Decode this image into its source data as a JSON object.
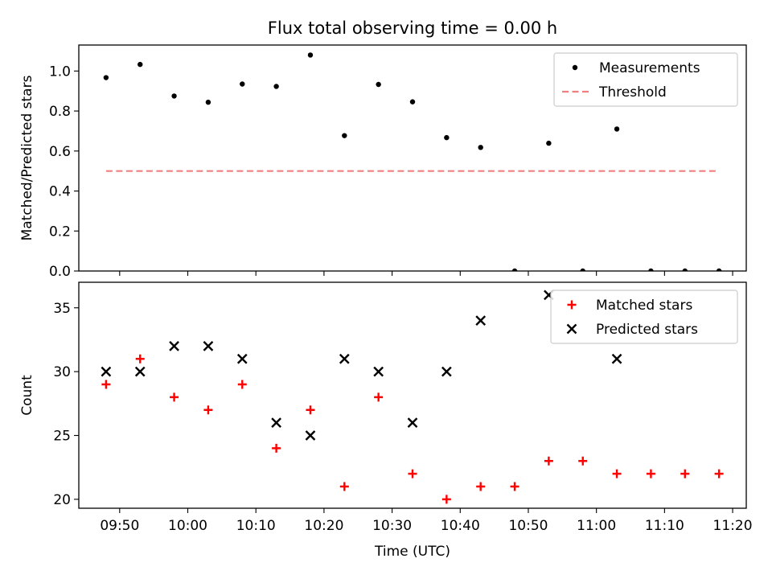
{
  "figure": {
    "title": "Flux total observing time = 0.00 h"
  },
  "chart_data": [
    {
      "type": "scatter",
      "title": "Flux total observing time = 0.00 h",
      "xlabel": "",
      "ylabel": "Matched/Predicted stars",
      "xlim": [
        "09:44",
        "11:22"
      ],
      "ylim": [
        0,
        1.13
      ],
      "yticks": [
        0.0,
        0.2,
        0.4,
        0.6,
        0.8,
        1.0
      ],
      "ytick_labels": [
        "0.0",
        "0.2",
        "0.4",
        "0.6",
        "0.8",
        "1.0"
      ],
      "grid": false,
      "legend": "top-right",
      "series": [
        {
          "name": "Measurements",
          "kind": "scatter",
          "marker": "dot",
          "color": "#000000",
          "x": [
            "09:48",
            "09:53",
            "09:58",
            "10:03",
            "10:08",
            "10:13",
            "10:18",
            "10:23",
            "10:28",
            "10:33",
            "10:38",
            "10:43",
            "10:48",
            "10:53",
            "10:58",
            "11:03",
            "11:08",
            "11:13",
            "11:18"
          ],
          "y": [
            0.967,
            1.033,
            0.875,
            0.844,
            0.935,
            0.923,
            1.08,
            0.677,
            0.933,
            0.846,
            0.667,
            0.618,
            0.0,
            0.639,
            0.0,
            0.71,
            0.0,
            0.0,
            0.0
          ]
        },
        {
          "name": "Threshold",
          "kind": "line",
          "style": "dashed",
          "color": "#f08080",
          "x": [
            "09:48",
            "11:18"
          ],
          "y": [
            0.5,
            0.5
          ]
        }
      ]
    },
    {
      "type": "scatter",
      "title": "",
      "xlabel": "Time (UTC)",
      "ylabel": "Count",
      "xlim": [
        "09:44",
        "11:22"
      ],
      "ylim": [
        19.3,
        37.0
      ],
      "yticks": [
        20,
        25,
        30,
        35
      ],
      "ytick_labels": [
        "20",
        "25",
        "30",
        "35"
      ],
      "xticks": [
        "09:50",
        "10:00",
        "10:10",
        "10:20",
        "10:30",
        "10:40",
        "10:50",
        "11:00",
        "11:10",
        "11:20"
      ],
      "grid": false,
      "legend": "top-right",
      "series": [
        {
          "name": "Matched stars",
          "kind": "scatter",
          "marker": "plus",
          "color": "#ff0000",
          "x": [
            "09:48",
            "09:53",
            "09:58",
            "10:03",
            "10:08",
            "10:13",
            "10:18",
            "10:23",
            "10:28",
            "10:33",
            "10:38",
            "10:43",
            "10:48",
            "10:53",
            "10:58",
            "11:03",
            "11:08",
            "11:13",
            "11:18"
          ],
          "y": [
            29,
            31,
            28,
            27,
            29,
            24,
            27,
            21,
            28,
            22,
            20,
            21,
            21,
            23,
            23,
            22,
            22,
            22,
            22
          ]
        },
        {
          "name": "Predicted stars",
          "kind": "scatter",
          "marker": "x",
          "color": "#000000",
          "x": [
            "09:48",
            "09:53",
            "09:58",
            "10:03",
            "10:08",
            "10:13",
            "10:18",
            "10:23",
            "10:28",
            "10:33",
            "10:38",
            "10:43",
            "10:53",
            "11:03"
          ],
          "y": [
            30,
            30,
            32,
            32,
            31,
            26,
            25,
            31,
            30,
            26,
            30,
            34,
            36,
            31
          ]
        }
      ]
    }
  ]
}
